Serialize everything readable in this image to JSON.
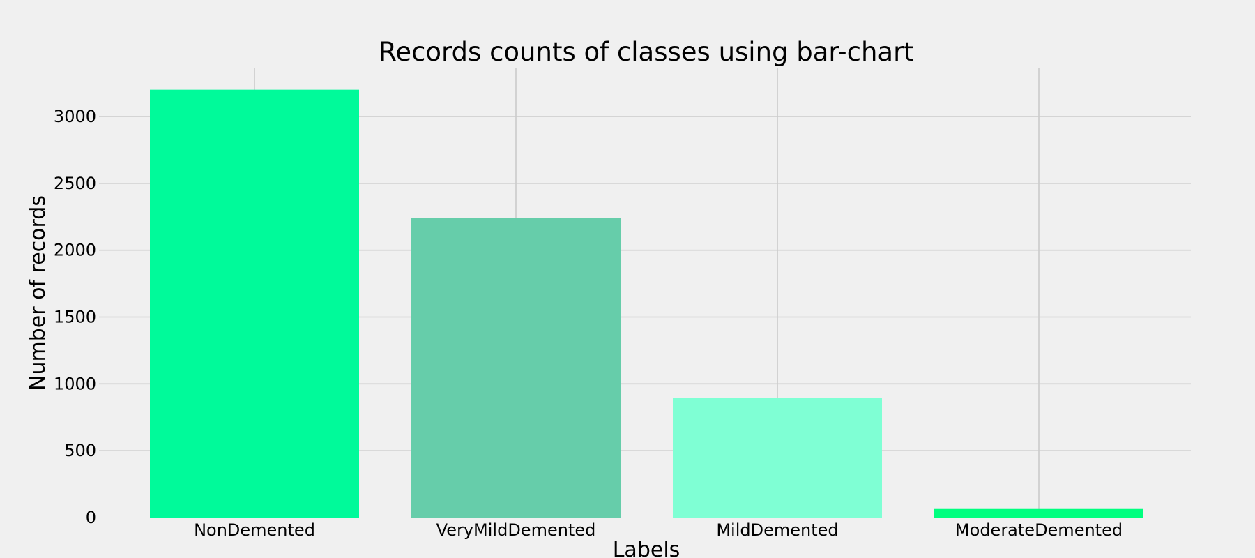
{
  "chart_data": {
    "type": "bar",
    "title": "Records counts of classes using bar-chart",
    "xlabel": "Labels",
    "ylabel": "Number of records",
    "categories": [
      "NonDemented",
      "VeryMildDemented",
      "MildDemented",
      "ModerateDemented"
    ],
    "values": [
      3200,
      2240,
      896,
      64
    ],
    "colors": [
      "#00fa9a",
      "#66cdaa",
      "#7fffd4",
      "#00ff7f"
    ],
    "ylim": [
      0,
      3360
    ],
    "yticks": [
      0,
      500,
      1000,
      1500,
      2000,
      2500,
      3000
    ],
    "ytick_labels": [
      "0",
      "500",
      "1000",
      "1500",
      "2000",
      "2500",
      "3000"
    ],
    "grid": true,
    "background": "#f0f0f0",
    "grid_color": "#cbcbcb"
  }
}
